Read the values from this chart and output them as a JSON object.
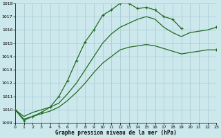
{
  "title": "Graphe pression niveau de la mer (hPa)",
  "bg_color": "#cce8ec",
  "grid_color": "#aacdd4",
  "line_color": "#1e6b1e",
  "xmin": 0,
  "xmax": 23,
  "ymin": 1009,
  "ymax": 1018,
  "xticks": [
    0,
    1,
    2,
    3,
    4,
    5,
    6,
    7,
    8,
    9,
    10,
    11,
    12,
    13,
    14,
    15,
    16,
    17,
    18,
    19,
    20,
    21,
    22,
    23
  ],
  "yticks": [
    1009,
    1010,
    1011,
    1012,
    1013,
    1014,
    1015,
    1016,
    1017,
    1018
  ],
  "curve1_x": [
    0,
    1,
    2,
    3,
    4,
    5,
    6,
    7,
    8,
    9,
    10,
    11,
    12,
    13,
    14,
    15,
    16,
    17,
    18,
    19
  ],
  "curve1_y": [
    1010.0,
    1009.2,
    1009.5,
    1009.8,
    1010.2,
    1011.0,
    1012.2,
    1013.7,
    1015.1,
    1016.0,
    1017.1,
    1017.5,
    1018.0,
    1018.0,
    1017.6,
    1017.7,
    1017.5,
    1017.0,
    1016.8,
    1016.1
  ],
  "curve2_x": [
    0,
    1,
    2,
    3,
    4,
    5,
    6,
    7,
    8,
    9,
    10,
    11,
    12,
    13,
    14,
    15,
    16,
    17,
    18,
    19,
    20,
    21,
    22,
    23
  ],
  "curve2_y": [
    1010.0,
    1009.5,
    1009.8,
    1010.0,
    1010.2,
    1010.5,
    1011.2,
    1012.0,
    1013.0,
    1014.0,
    1015.0,
    1015.7,
    1016.2,
    1016.5,
    1016.8,
    1017.0,
    1016.8,
    1016.2,
    1015.8,
    1015.5,
    1015.8,
    1015.9,
    1016.0,
    1016.2
  ],
  "curve3_x": [
    0,
    1,
    2,
    3,
    4,
    5,
    6,
    7,
    8,
    9,
    10,
    11,
    12,
    13,
    14,
    15,
    16,
    17,
    18,
    19,
    20,
    21,
    22,
    23
  ],
  "curve3_y": [
    1010.0,
    1009.3,
    1009.5,
    1009.7,
    1009.9,
    1010.2,
    1010.7,
    1011.3,
    1012.0,
    1012.8,
    1013.5,
    1014.0,
    1014.5,
    1014.7,
    1014.8,
    1014.9,
    1014.8,
    1014.6,
    1014.4,
    1014.2,
    1014.3,
    1014.4,
    1014.5,
    1014.5
  ]
}
